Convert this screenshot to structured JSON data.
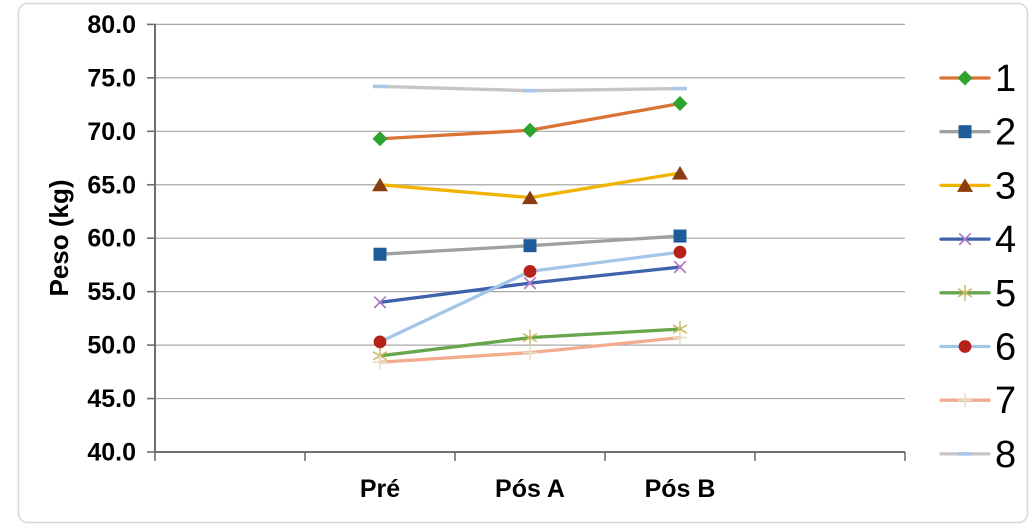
{
  "chart_data": {
    "type": "line",
    "title": "",
    "xlabel": "",
    "ylabel": "Peso (kg)",
    "categories": [
      "Pré",
      "Pós A",
      "Pós B"
    ],
    "y_ticks": [
      "40.0",
      "45.0",
      "50.0",
      "55.0",
      "60.0",
      "65.0",
      "70.0",
      "75.0",
      "80.0"
    ],
    "y_tick_values": [
      40,
      45,
      50,
      55,
      60,
      65,
      70,
      75,
      80
    ],
    "ylim": [
      40,
      80
    ],
    "grid": true,
    "legend_position": "right",
    "series": [
      {
        "name": "1",
        "values": [
          69.3,
          70.1,
          72.6
        ],
        "line_color": "#DA7334",
        "marker": "diamond",
        "marker_color": "#2FA330"
      },
      {
        "name": "2",
        "values": [
          58.5,
          59.3,
          60.2
        ],
        "line_color": "#A0A0A0",
        "marker": "square",
        "marker_color": "#1D5C99"
      },
      {
        "name": "3",
        "values": [
          65.0,
          63.8,
          66.1
        ],
        "line_color": "#F0B300",
        "marker": "triangle",
        "marker_color": "#8C3D0F"
      },
      {
        "name": "4",
        "values": [
          54.0,
          55.8,
          57.3
        ],
        "line_color": "#3E62AC",
        "marker": "x",
        "marker_color": "#B07CC6"
      },
      {
        "name": "5",
        "values": [
          49.0,
          50.7,
          51.5
        ],
        "line_color": "#68A64D",
        "marker": "star",
        "marker_color": "#CBB864"
      },
      {
        "name": "6",
        "values": [
          50.3,
          56.9,
          58.7
        ],
        "line_color": "#A2C5E8",
        "marker": "circle",
        "marker_color": "#B52318"
      },
      {
        "name": "7",
        "values": [
          48.4,
          49.3,
          50.7
        ],
        "line_color": "#F2AC8D",
        "marker": "plus",
        "marker_color": "#E6E0C8"
      },
      {
        "name": "8",
        "values": [
          74.2,
          73.8,
          74.0
        ],
        "line_color": "#C6C6C6",
        "marker": "dash",
        "marker_color": "#A9C7E9"
      }
    ],
    "colors": {
      "background": "#FFFFFF",
      "chart_border": "#D7D7D7",
      "gridline": "#A8A8A8",
      "axis": "#6E6E6E",
      "text": "#000000"
    }
  }
}
